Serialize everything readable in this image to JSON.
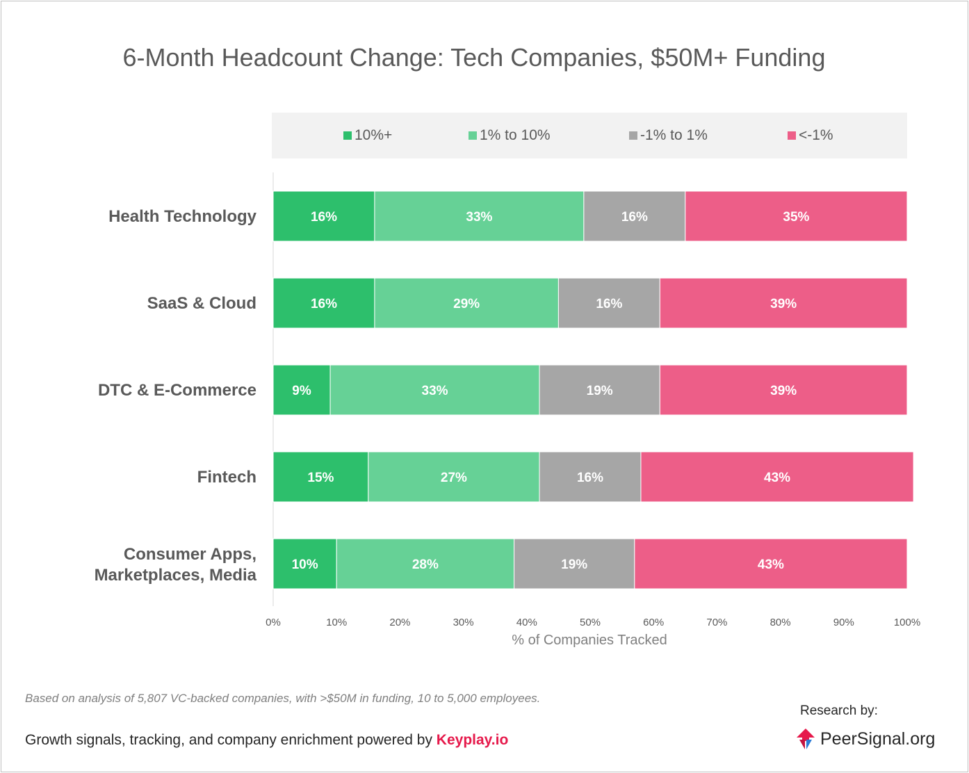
{
  "title": "6-Month Headcount Change: Tech Companies, $50M+ Funding",
  "legend": [
    {
      "label": "10%+",
      "color": "#2dbf6c"
    },
    {
      "label": "1% to 10%",
      "color": "#66d196"
    },
    {
      "label": "-1% to 1%",
      "color": "#a6a6a6"
    },
    {
      "label": "<-1%",
      "color": "#ed5e88"
    }
  ],
  "chart_data": {
    "type": "bar",
    "orientation": "horizontal",
    "stacked": true,
    "categories": [
      "Health Technology",
      "SaaS & Cloud",
      "DTC & E-Commerce",
      "Fintech",
      "Consumer Apps, Marketplaces, Media"
    ],
    "series": [
      {
        "name": "10%+",
        "values": [
          16,
          16,
          9,
          15,
          10
        ],
        "labels": [
          "16%",
          "16%",
          "9%",
          "15%",
          "10%"
        ]
      },
      {
        "name": "1% to 10%",
        "values": [
          33,
          29,
          33,
          27,
          28
        ],
        "labels": [
          "33%",
          "29%",
          "33%",
          "27%",
          "28%"
        ]
      },
      {
        "name": "-1% to 1%",
        "values": [
          16,
          16,
          19,
          16,
          19
        ],
        "labels": [
          "16%",
          "16%",
          "19%",
          "16%",
          "19%"
        ]
      },
      {
        "name": "<-1%",
        "values": [
          35,
          39,
          39,
          43,
          43
        ],
        "labels": [
          "35%",
          "39%",
          "39%",
          "43%",
          "43%"
        ]
      }
    ],
    "xlabel": "% of Companies Tracked",
    "ylabel": "",
    "xlim": [
      0,
      100
    ],
    "xticks": [
      "0%",
      "10%",
      "20%",
      "30%",
      "40%",
      "50%",
      "60%",
      "70%",
      "80%",
      "90%",
      "100%"
    ],
    "grid": false,
    "legend_position": "top"
  },
  "footnote": "Based on analysis of 5,807 VC-backed companies, with >$50M in funding, 10 to 5,000 employees.",
  "credit": {
    "text": "Growth signals, tracking, and company enrichment powered by ",
    "brand": "Keyplay.io"
  },
  "research": {
    "label": "Research by:",
    "logo_text": "PeerSignal.org",
    "logo_icon": "peersignal-logo-icon"
  }
}
